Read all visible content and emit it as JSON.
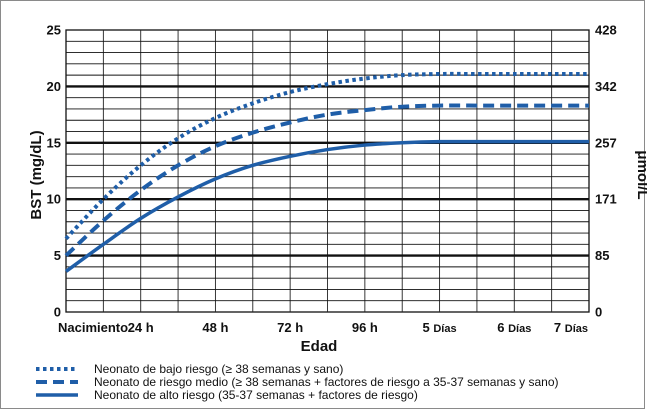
{
  "chart_data": {
    "type": "line",
    "xlabel": "Edad",
    "ylabel_left": "BST (mg/dL)",
    "ylabel_right": "μmol/L",
    "x_categories": [
      "Nacimiento",
      "24 h",
      "48 h",
      "72 h",
      "96 h",
      "5 Días",
      "6 Días",
      "7 Días"
    ],
    "x_hours": [
      0,
      24,
      48,
      72,
      96,
      120,
      144,
      168
    ],
    "ylim": [
      0,
      25
    ],
    "y_ticks_left": [
      "0",
      "5",
      "10",
      "15",
      "20",
      "25"
    ],
    "y_ticks_right": [
      "0",
      "85",
      "171",
      "257",
      "342",
      "428"
    ],
    "grid": true,
    "series": [
      {
        "name": "Neonato de bajo riesgo (≥ 38 semanas y sano)",
        "style": "dotted",
        "color": "#1f5ea8",
        "x": [
          0,
          12,
          24,
          36,
          48,
          60,
          72,
          84,
          96,
          108,
          120,
          132,
          144,
          156,
          168
        ],
        "y": [
          6.5,
          10.0,
          13.0,
          15.4,
          17.2,
          18.5,
          19.5,
          20.2,
          20.7,
          21.0,
          21.1,
          21.1,
          21.1,
          21.1,
          21.1
        ]
      },
      {
        "name": "Neonato de riesgo medio (≥ 38 semanas + factores de riesgo a 35-37 semanas y sano)",
        "style": "dashed",
        "color": "#1f5ea8",
        "x": [
          0,
          12,
          24,
          36,
          48,
          60,
          72,
          84,
          96,
          108,
          120,
          132,
          144,
          156,
          168
        ],
        "y": [
          5.0,
          8.1,
          10.8,
          13.0,
          14.7,
          15.9,
          16.8,
          17.5,
          17.9,
          18.2,
          18.3,
          18.3,
          18.3,
          18.3,
          18.3
        ]
      },
      {
        "name": "Neonato de alto riesgo (35-37 semanas + factores de riesgo)",
        "style": "solid",
        "color": "#1f5ea8",
        "x": [
          0,
          12,
          24,
          36,
          48,
          60,
          72,
          84,
          96,
          108,
          120,
          132,
          144,
          156,
          168
        ],
        "y": [
          3.6,
          6.0,
          8.3,
          10.2,
          11.8,
          13.0,
          13.8,
          14.4,
          14.8,
          15.0,
          15.1,
          15.1,
          15.1,
          15.1,
          15.1
        ]
      }
    ],
    "legend_position": "bottom-left"
  }
}
